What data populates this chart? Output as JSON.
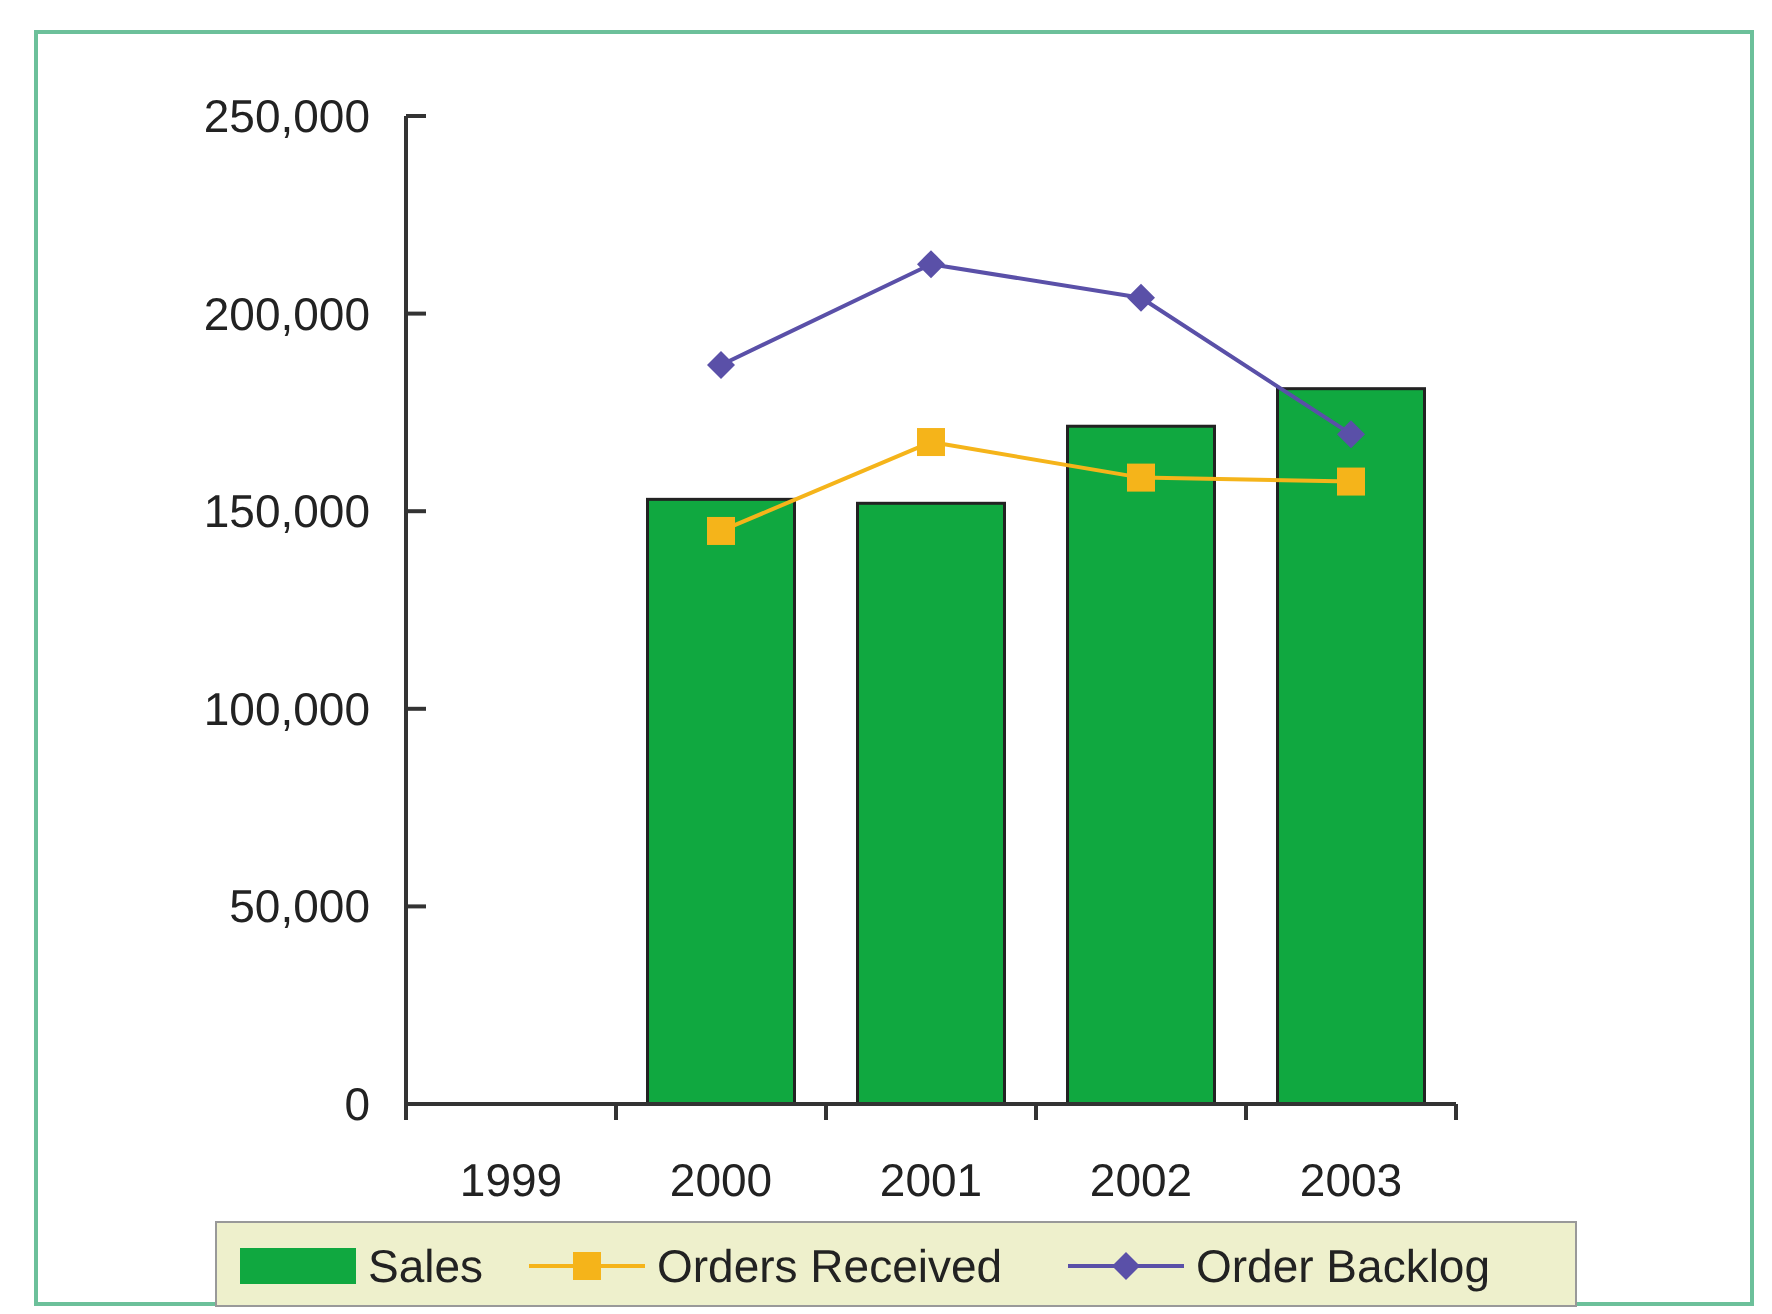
{
  "chart_data": {
    "type": "bar",
    "categories": [
      "1999",
      "2000",
      "2001",
      "2002",
      "2003"
    ],
    "series": [
      {
        "name": "Sales",
        "color": "#10a840",
        "values": [
          null,
          153000,
          152000,
          171500,
          181000
        ]
      },
      {
        "name": "Orders Received",
        "type": "line",
        "color": "#f5b41a",
        "marker": "square",
        "values": [
          null,
          145000,
          167500,
          158500,
          157500
        ]
      },
      {
        "name": "Order Backlog",
        "type": "line",
        "color": "#5a50a8",
        "marker": "diamond",
        "values": [
          null,
          187000,
          212500,
          204000,
          169500
        ]
      }
    ],
    "ylim": [
      0,
      250000
    ],
    "yticks": [
      {
        "value": 0,
        "label": "0"
      },
      {
        "value": 50000,
        "label": "50,000"
      },
      {
        "value": 100000,
        "label": "100,000"
      },
      {
        "value": 150000,
        "label": "150,000"
      },
      {
        "value": 200000,
        "label": "200,000"
      },
      {
        "value": 250000,
        "label": "250,000"
      }
    ],
    "legend": "bottom",
    "grid": false
  }
}
